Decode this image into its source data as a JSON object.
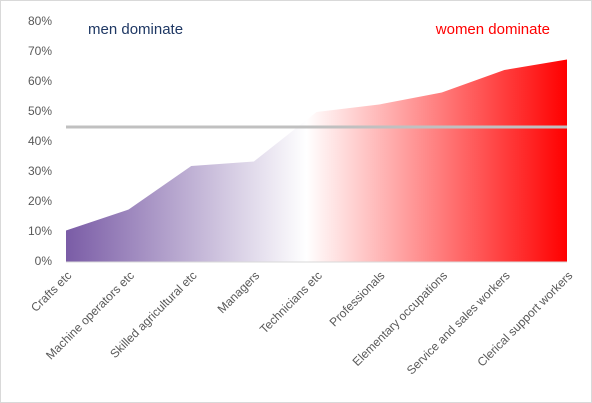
{
  "chart_data": {
    "type": "area",
    "categories": [
      "Crafts etc",
      "Machine operators etc",
      "Skilled agricultural etc",
      "Managers",
      "Technicians etc",
      "Professionals",
      "Elementary occupations",
      "Service and sales workers",
      "Clerical support workers"
    ],
    "values": [
      10.5,
      17.5,
      32,
      33.5,
      50,
      52.5,
      56.5,
      64,
      67.5
    ],
    "colors": [
      "#7a5ca6",
      "#ffffff",
      "#ff0000"
    ],
    "reference_line": {
      "value": 45,
      "color": "#c0c0c0"
    },
    "annotations": [
      {
        "text": "men dominate",
        "color": "#1f3864"
      },
      {
        "text": "women dominate",
        "color": "#ff0000"
      }
    ],
    "ylim": [
      0,
      80
    ],
    "yticks": [
      {
        "value": 0,
        "label": "0%"
      },
      {
        "value": 10,
        "label": "10%"
      },
      {
        "value": 20,
        "label": "20%"
      },
      {
        "value": 30,
        "label": "30%"
      },
      {
        "value": 40,
        "label": "40%"
      },
      {
        "value": 50,
        "label": "50%"
      },
      {
        "value": 60,
        "label": "60%"
      },
      {
        "value": 70,
        "label": "70%"
      },
      {
        "value": 80,
        "label": "80%"
      }
    ],
    "grid": false
  }
}
